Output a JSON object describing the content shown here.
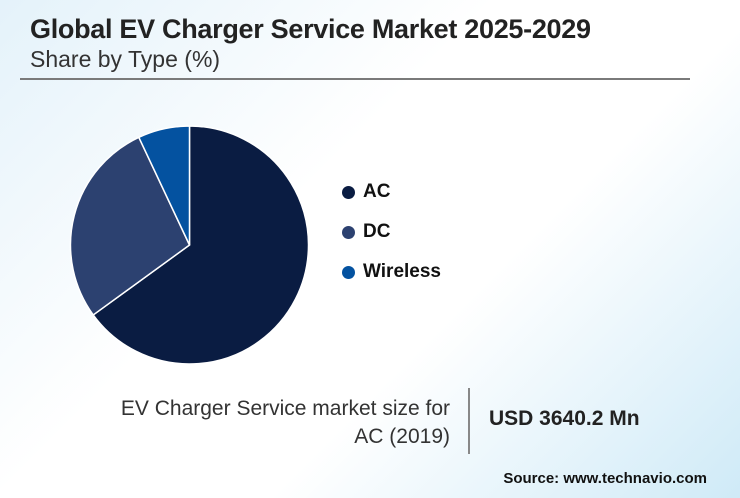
{
  "header": {
    "title": "Global EV Charger Service Market 2025-2029",
    "subtitle": "Share by Type (%)"
  },
  "chart_data": {
    "type": "pie",
    "title": "Global EV Charger Service Market 2025-2029",
    "subtitle": "Share by Type (%)",
    "categories": [
      "AC",
      "DC",
      "Wireless"
    ],
    "values": [
      65,
      28,
      7
    ],
    "colors": [
      "#0a1c42",
      "#2c4170",
      "#0452a0"
    ],
    "start": "top, clockwise",
    "legend_position": "right"
  },
  "stat": {
    "label_line1": "EV Charger Service market size for",
    "label_line2": "AC (2019)",
    "value": "USD 3640.2 Mn"
  },
  "source": "Source: www.technavio.com"
}
